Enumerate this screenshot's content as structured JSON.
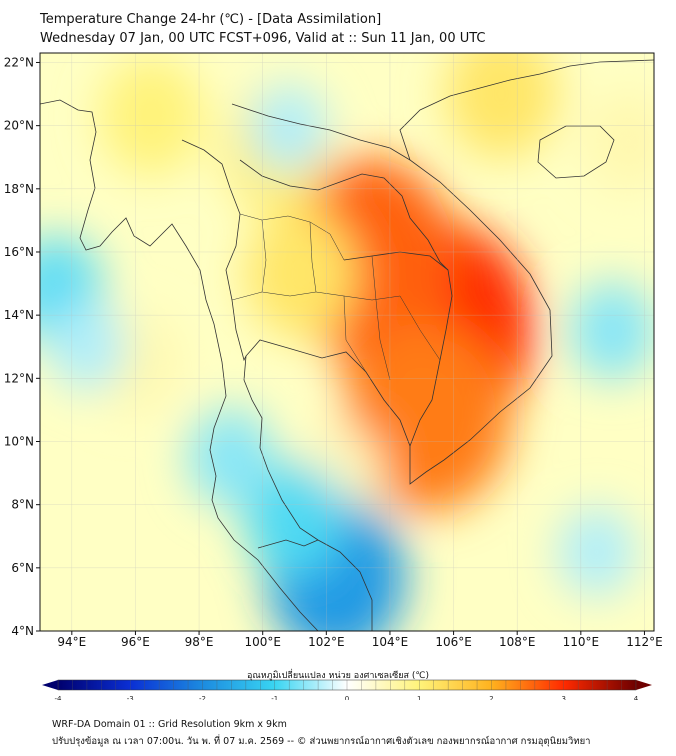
{
  "header": {
    "title": "Temperature Change 24-hr (℃) - [Data Assimilation]",
    "subtitle": "Wednesday 07 Jan, 00 UTC FCST+096, Valid at :: Sun 11 Jan, 00 UTC"
  },
  "map": {
    "lon_labels": [
      "94°E",
      "96°E",
      "98°E",
      "100°E",
      "102°E",
      "104°E",
      "106°E",
      "108°E",
      "110°E",
      "112°E"
    ],
    "lat_labels": [
      "22°N",
      "20°N",
      "18°N",
      "16°N",
      "14°N",
      "12°N",
      "10°N",
      "8°N",
      "6°N",
      "4°N"
    ],
    "lon_range": [
      93,
      112.3
    ],
    "lat_range": [
      4,
      22.3
    ],
    "background_color": "#ffffc4",
    "anomalies": [
      {
        "name": "cambodia-laos-max",
        "lon": 105.5,
        "lat": 13.5,
        "value": 3.0
      },
      {
        "name": "isaan-high",
        "lon": 103.3,
        "lat": 15.8,
        "value": 2.6
      },
      {
        "name": "south-cambodia",
        "lon": 105.2,
        "lat": 10.8,
        "value": 2.4
      },
      {
        "name": "central-thailand",
        "lon": 101.2,
        "lat": 15.3,
        "value": 1.2
      },
      {
        "name": "north-thailand",
        "lon": 100.5,
        "lat": 19.2,
        "value": 1.1
      },
      {
        "name": "south-china",
        "lon": 107.5,
        "lat": 21.0,
        "value": 1.2
      },
      {
        "name": "myanmar-north",
        "lon": 96.5,
        "lat": 20.3,
        "value": 1.0
      },
      {
        "name": "hainan-east",
        "lon": 111.5,
        "lat": 19.5,
        "value": 0.6
      },
      {
        "name": "andaman-sea",
        "lon": 96.0,
        "lat": 12.5,
        "value": 0.6
      },
      {
        "name": "gulf-thailand",
        "lon": 102.5,
        "lat": 9.0,
        "value": 0.5
      },
      {
        "name": "andaman-west",
        "lon": 93.5,
        "lat": 14.8,
        "value": -0.8
      },
      {
        "name": "andaman-west-2",
        "lon": 94.5,
        "lat": 13.0,
        "value": -0.4
      },
      {
        "name": "malaysia-cold",
        "lon": 102.3,
        "lat": 5.7,
        "value": -1.8
      },
      {
        "name": "peninsula-cold",
        "lon": 101.0,
        "lat": 7.5,
        "value": -0.9
      },
      {
        "name": "peninsula-cold-2",
        "lon": 99.0,
        "lat": 9.5,
        "value": -0.6
      },
      {
        "name": "sea-east-cold",
        "lon": 111.0,
        "lat": 13.5,
        "value": -0.6
      },
      {
        "name": "sea-southeast-cold",
        "lon": 110.5,
        "lat": 6.5,
        "value": -0.4
      },
      {
        "name": "laos-north-cool",
        "lon": 100.8,
        "lat": 19.9,
        "value": -0.4
      }
    ]
  },
  "colorbar": {
    "label": "อุณหภูมิเปลี่ยนแปลง หน่วย องศาเซลเซียส (℃)",
    "ticks": [
      "-4",
      "-3",
      "-2",
      "-1",
      "0",
      "1",
      "2",
      "3",
      "4"
    ],
    "range": [
      -4,
      4
    ],
    "colors": [
      "#00006e",
      "#0a2fd4",
      "#1c8be0",
      "#39d5f2",
      "#ffffff",
      "#fff37a",
      "#ffb21e",
      "#ff2a00",
      "#6e0000"
    ]
  },
  "footer": {
    "line1": "WRF-DA Domain 01 :: Grid Resolution 9km x 9km",
    "line2": "ปรับปรุงข้อมูล ณ เวลา 07:00น. วัน พ. ที่ 07 ม.ค. 2569 -- © ส่วนพยากรณ์อากาศเชิงตัวเลข กองพยากรณ์อากาศ กรมอุตุนิยมวิทยา"
  }
}
